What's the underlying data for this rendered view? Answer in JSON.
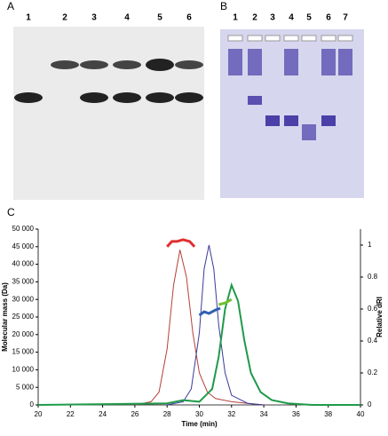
{
  "panels": {
    "A": {
      "label": "A",
      "lanes": [
        "1",
        "2",
        "3",
        "4",
        "5",
        "6"
      ]
    },
    "B": {
      "label": "B",
      "lanes": [
        "1",
        "2",
        "3",
        "4",
        "5",
        "6",
        "7"
      ]
    },
    "C": {
      "label": "C"
    }
  },
  "chart_data": {
    "type": "line",
    "x_label": "Time (min)",
    "y_label": "Molecular mass (Da)",
    "y2_label": "Relative dRI",
    "xlim": [
      20,
      40
    ],
    "xticks": [
      20,
      22,
      24,
      26,
      28,
      30,
      32,
      34,
      36,
      38,
      40
    ],
    "ylim": [
      0,
      50000
    ],
    "yticks": [
      0,
      {
        "value": 5000,
        "label": "5 000"
      },
      {
        "value": 10000,
        "label": "10 000"
      },
      {
        "value": 15000,
        "label": "15 000"
      },
      {
        "value": 20000,
        "label": "20 000"
      },
      {
        "value": 25000,
        "label": "25 000"
      },
      {
        "value": 30000,
        "label": "30 000"
      },
      {
        "value": 35000,
        "label": "35 000"
      },
      {
        "value": 40000,
        "label": "40 000"
      },
      {
        "value": 45000,
        "label": "45 000"
      },
      {
        "value": 50000,
        "label": "50 000"
      }
    ],
    "y2lim": [
      0,
      1.1
    ],
    "y2ticks": [
      0,
      0.2,
      0.4,
      0.6,
      0.8,
      1
    ],
    "series": [
      {
        "color": "#b5403a",
        "width": 1,
        "axis": "y2",
        "x": [
          26,
          27,
          27.5,
          28,
          28.4,
          28.8,
          29.2,
          29.6,
          30,
          30.5,
          31,
          32,
          33,
          34
        ],
        "values": [
          0,
          0.02,
          0.08,
          0.35,
          0.75,
          0.97,
          0.8,
          0.45,
          0.2,
          0.08,
          0.04,
          0.02,
          0.01,
          0
        ]
      },
      {
        "color": "#3a3a9a",
        "width": 1,
        "axis": "y2",
        "x": [
          28,
          29,
          29.5,
          30,
          30.3,
          30.6,
          30.9,
          31.2,
          31.6,
          32,
          33,
          34
        ],
        "values": [
          0,
          0.02,
          0.1,
          0.45,
          0.85,
          1,
          0.85,
          0.5,
          0.2,
          0.06,
          0.01,
          0
        ]
      },
      {
        "color": "#1f9a4a",
        "width": 2,
        "axis": "y2",
        "x": [
          20,
          28,
          29,
          30,
          30.8,
          31.2,
          31.6,
          32,
          32.4,
          32.8,
          33.2,
          33.8,
          34.5,
          35.5,
          37,
          40
        ],
        "values": [
          0,
          0.01,
          0.03,
          0.02,
          0.1,
          0.3,
          0.6,
          0.75,
          0.65,
          0.4,
          0.2,
          0.08,
          0.03,
          0.01,
          0,
          0
        ]
      },
      {
        "color": "#e03030",
        "width": 3,
        "x": [
          28,
          28.3,
          28.6,
          29,
          29.4,
          29.7
        ],
        "values": [
          45000,
          46500,
          46500,
          47000,
          46500,
          45000
        ]
      },
      {
        "color": "#3060b0",
        "width": 3,
        "x": [
          30,
          30.3,
          30.6,
          31,
          31.3
        ],
        "values": [
          25500,
          26500,
          26000,
          27000,
          27500
        ]
      },
      {
        "color": "#70c030",
        "width": 3,
        "x": [
          31.2,
          31.6,
          32
        ],
        "values": [
          28500,
          29000,
          30000
        ]
      }
    ]
  }
}
